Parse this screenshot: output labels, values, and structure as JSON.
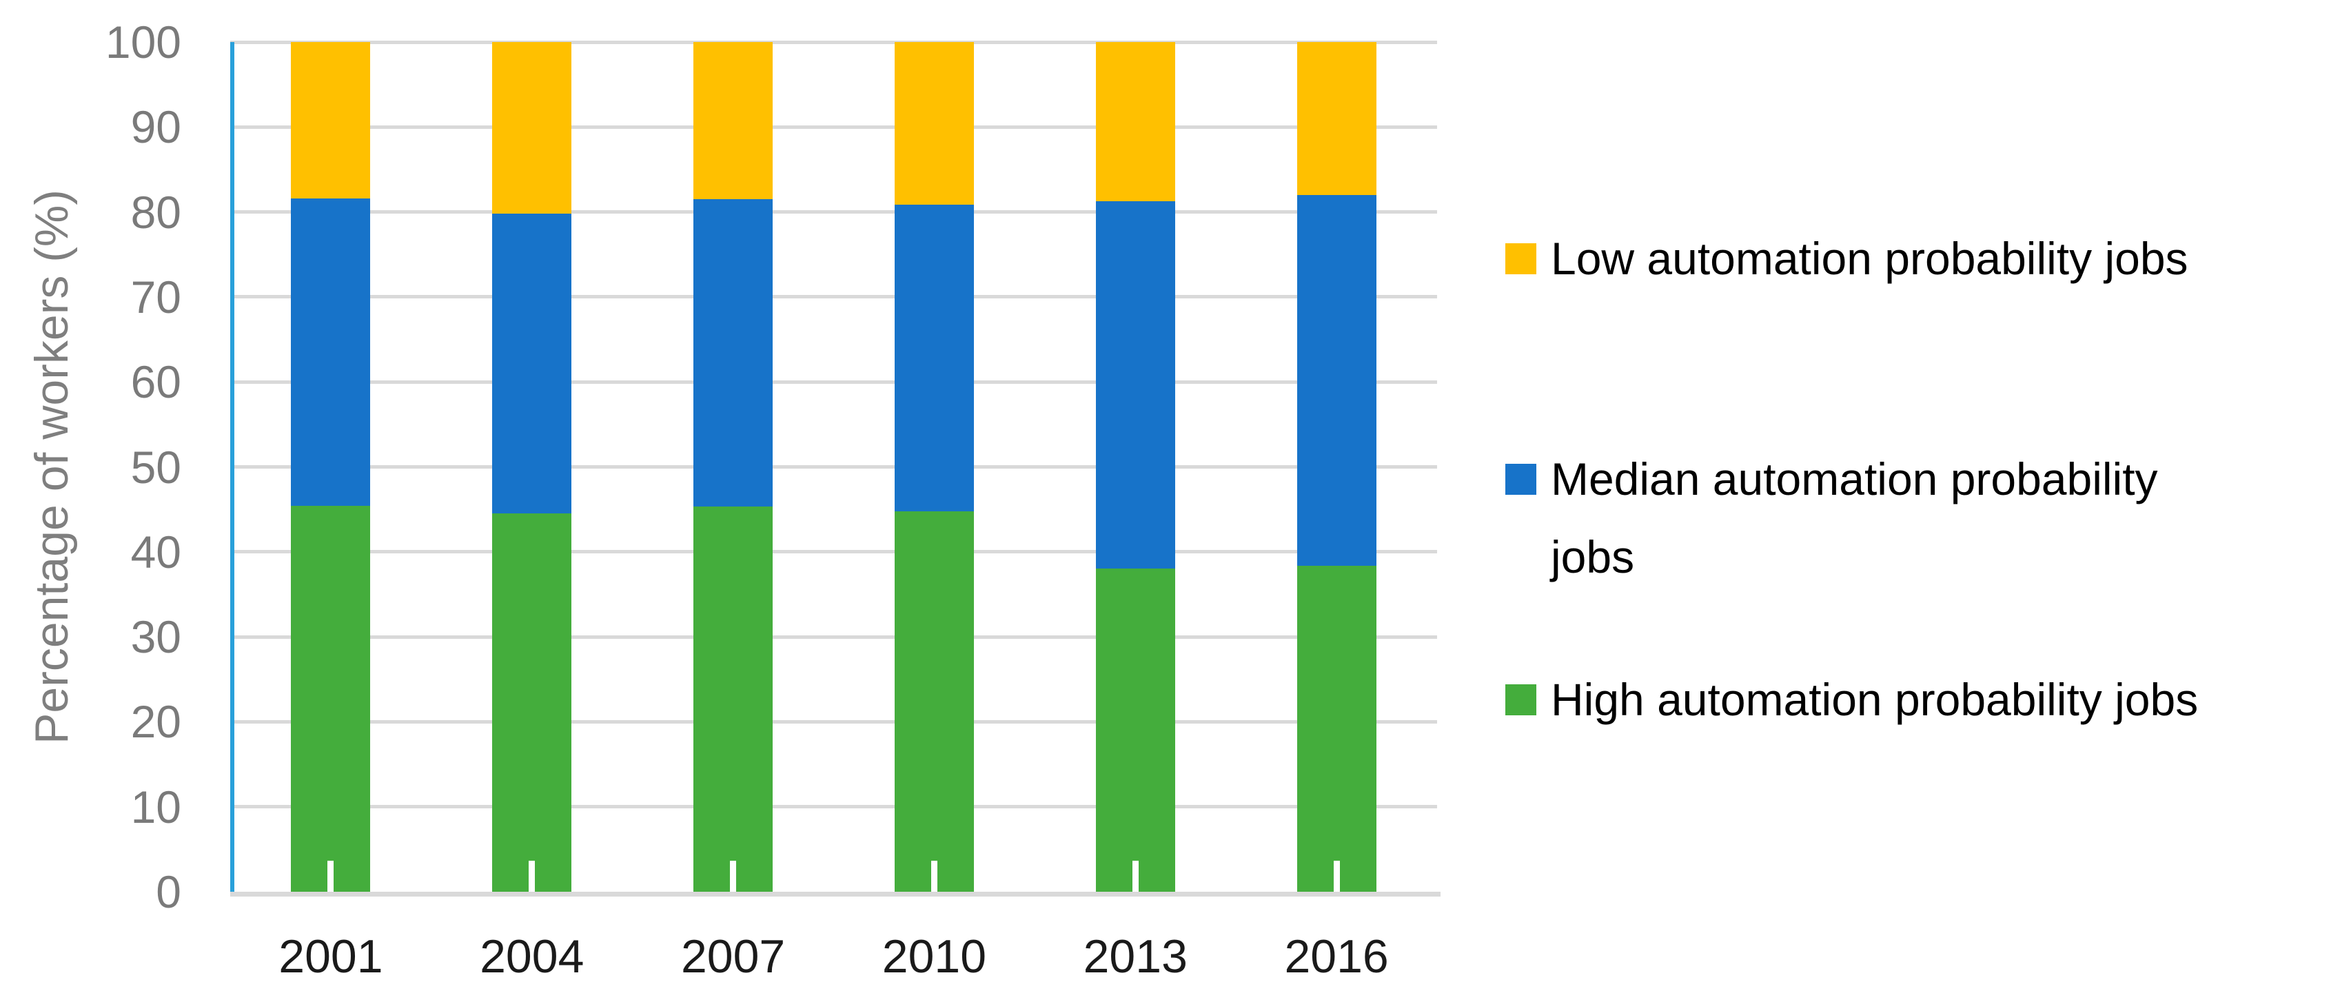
{
  "chart_data": {
    "type": "bar",
    "stacked": true,
    "title": "",
    "xlabel": "",
    "ylabel": "Percentage of workers (%)",
    "ylim": [
      0,
      100
    ],
    "ytick_interval": 10,
    "grid": true,
    "legend_position": "right",
    "categories": [
      "2001",
      "2004",
      "2007",
      "2010",
      "2013",
      "2016"
    ],
    "series": [
      {
        "name": "High automation probability jobs",
        "color": "#44AD3C",
        "values": [
          45.4,
          44.5,
          45.3,
          44.8,
          38.0,
          38.4
        ]
      },
      {
        "name": "Median automation probability jobs",
        "color": "#1773C9",
        "values": [
          36.2,
          35.3,
          36.2,
          36.1,
          43.3,
          43.6
        ]
      },
      {
        "name": "Low automation probability jobs",
        "color": "#FFC000",
        "values": [
          18.4,
          20.2,
          18.5,
          19.1,
          18.7,
          18.0
        ]
      }
    ]
  },
  "axes": {
    "y_title": "Percentage of workers (%)",
    "y_ticks": [
      "0",
      "10",
      "20",
      "30",
      "40",
      "50",
      "60",
      "70",
      "80",
      "90",
      "100"
    ],
    "x_ticks": [
      "2001",
      "2004",
      "2007",
      "2010",
      "2013",
      "2016"
    ]
  },
  "legend": {
    "items": [
      {
        "label": "Low automation probability jobs",
        "lines": [
          "Low automation probability jobs"
        ],
        "color": "#FFC000"
      },
      {
        "label": "Median automation probability jobs",
        "lines": [
          "Median automation probability",
          "jobs"
        ],
        "color": "#1773C9"
      },
      {
        "label": "High automation probability jobs",
        "lines": [
          "High automation probability jobs"
        ],
        "color": "#44AD3C"
      }
    ]
  },
  "colors": {
    "y_axis_line": "#29A0DA",
    "gridline": "#D9D9D9",
    "x_axis_line": "#D9D9D9",
    "y_tick_text": "#7A7A7A",
    "x_tick_text": "#1A1A1A",
    "y_title_text": "#7F7F7F",
    "legend_text": "#000000",
    "background": "#FFFFFF"
  }
}
